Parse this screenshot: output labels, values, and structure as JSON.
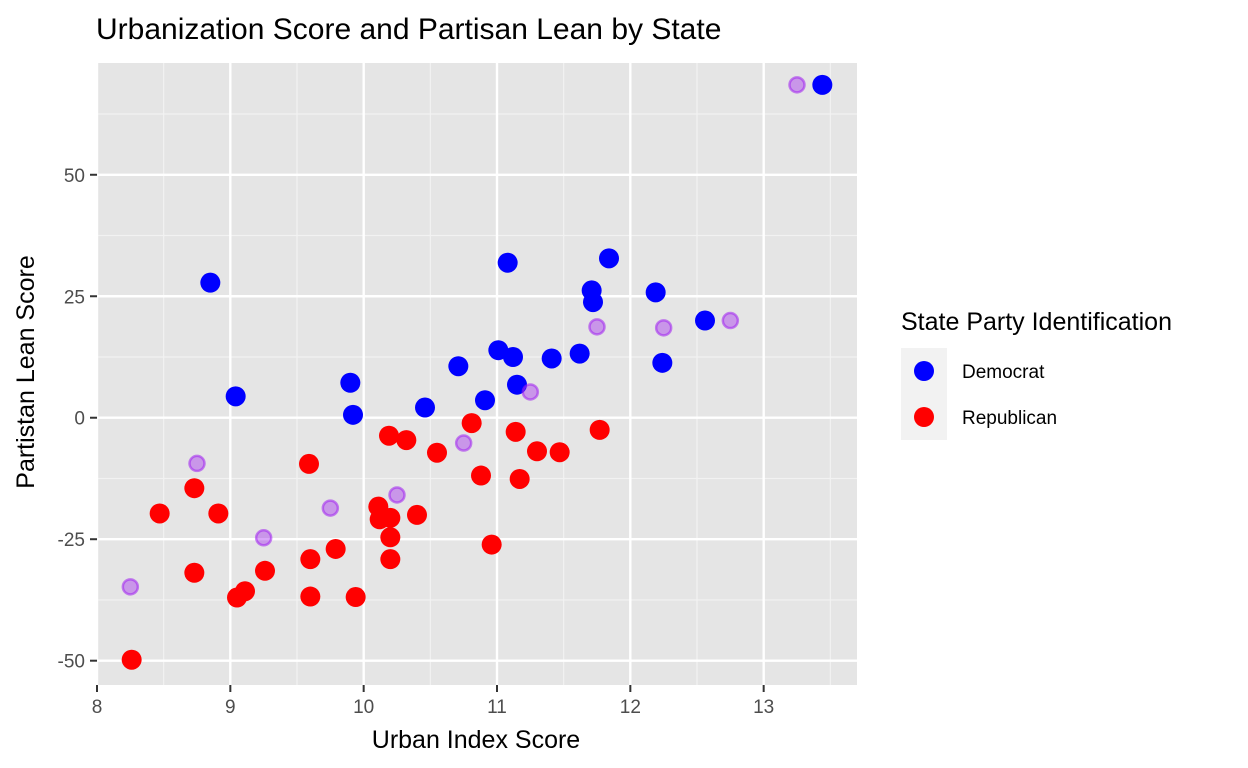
{
  "chart_data": {
    "type": "scatter",
    "title": "Urbanization Score and Partisan Lean by State",
    "xlabel": "Urban Index Score",
    "ylabel": "Partistan Lean Score",
    "xlim": [
      8,
      13.7
    ],
    "ylim": [
      -55,
      73
    ],
    "x_ticks": [
      8,
      9,
      10,
      11,
      12,
      13
    ],
    "y_ticks": [
      -50,
      -25,
      0,
      25,
      50
    ],
    "x_tick_labels": [
      "8",
      "9",
      "10",
      "11",
      "12",
      "13"
    ],
    "y_tick_labels": [
      "-50",
      "-25",
      "0",
      "25",
      "50"
    ],
    "grid": true,
    "legend": {
      "title": "State Party Identification",
      "placement": "right",
      "entries": [
        {
          "label": "Democrat",
          "color": "#0000ff"
        },
        {
          "label": "Republican",
          "color": "#ff0000"
        }
      ]
    },
    "colors": {
      "panel": "#e5e5e5",
      "grid_major": "#ffffff",
      "grid_minor": "#f2f2f2",
      "democrat": "#0000ff",
      "republican": "#ff0000",
      "overlay": "#a020f0"
    },
    "series": [
      {
        "name": "Democrat",
        "color": "#0000ff",
        "points": [
          [
            13.44,
            68.5
          ],
          [
            8.85,
            27.8
          ],
          [
            9.04,
            4.4
          ],
          [
            9.9,
            7.2
          ],
          [
            9.92,
            0.6
          ],
          [
            10.46,
            2.1
          ],
          [
            10.71,
            10.6
          ],
          [
            10.91,
            3.6
          ],
          [
            11.01,
            13.9
          ],
          [
            11.08,
            31.9
          ],
          [
            11.12,
            12.5
          ],
          [
            11.15,
            6.8
          ],
          [
            11.41,
            12.2
          ],
          [
            11.62,
            13.2
          ],
          [
            11.71,
            26.2
          ],
          [
            11.72,
            23.8
          ],
          [
            11.84,
            32.8
          ],
          [
            12.19,
            25.8
          ],
          [
            12.24,
            11.3
          ],
          [
            12.56,
            20.0
          ]
        ]
      },
      {
        "name": "Republican",
        "color": "#ff0000",
        "points": [
          [
            8.26,
            -49.8
          ],
          [
            8.47,
            -19.7
          ],
          [
            8.73,
            -14.5
          ],
          [
            8.73,
            -31.9
          ],
          [
            8.91,
            -19.7
          ],
          [
            9.05,
            -37.0
          ],
          [
            9.11,
            -35.7
          ],
          [
            9.26,
            -31.5
          ],
          [
            9.59,
            -9.5
          ],
          [
            9.6,
            -29.1
          ],
          [
            9.6,
            -36.8
          ],
          [
            9.79,
            -27.0
          ],
          [
            9.94,
            -36.9
          ],
          [
            10.11,
            -18.3
          ],
          [
            10.12,
            -20.9
          ],
          [
            10.19,
            -3.7
          ],
          [
            10.2,
            -20.6
          ],
          [
            10.2,
            -24.6
          ],
          [
            10.2,
            -29.1
          ],
          [
            10.32,
            -4.6
          ],
          [
            10.4,
            -20.0
          ],
          [
            10.55,
            -7.2
          ],
          [
            10.81,
            -1.1
          ],
          [
            10.88,
            -11.9
          ],
          [
            10.96,
            -26.1
          ],
          [
            11.14,
            -2.9
          ],
          [
            11.17,
            -12.6
          ],
          [
            11.3,
            -6.9
          ],
          [
            11.47,
            -7.1
          ],
          [
            11.77,
            -2.5
          ]
        ]
      },
      {
        "name": "",
        "color": "#a020f0",
        "style": "overlay",
        "points": [
          [
            13.25,
            68.5
          ],
          [
            8.25,
            -34.8
          ],
          [
            8.75,
            -9.4
          ],
          [
            9.25,
            -24.7
          ],
          [
            9.75,
            -18.6
          ],
          [
            10.25,
            -15.9
          ],
          [
            10.75,
            -5.2
          ],
          [
            11.25,
            5.3
          ],
          [
            11.75,
            18.7
          ],
          [
            12.25,
            18.5
          ],
          [
            12.75,
            20.0
          ]
        ]
      }
    ]
  }
}
